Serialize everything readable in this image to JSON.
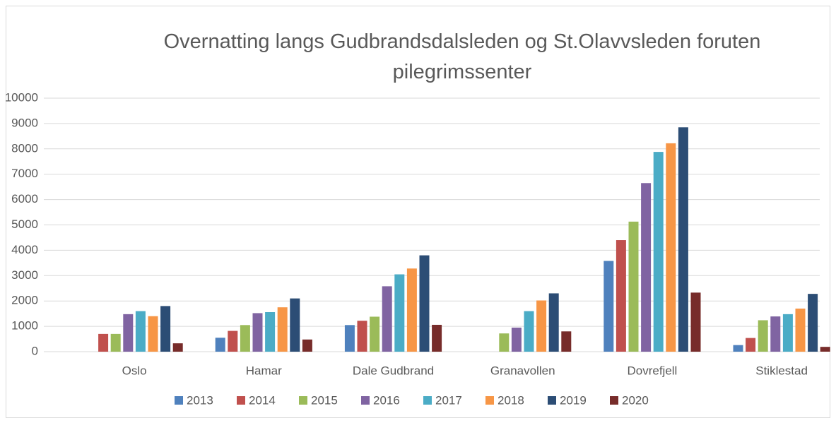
{
  "chart_data": {
    "type": "bar",
    "title": "Overnatting langs Gudbrandsdalsleden og St.Olavvsleden foruten pilegrimssenter",
    "categories": [
      "Oslo",
      "Hamar",
      "Dale Gudbrand",
      "Granavollen",
      "Dovrefjell",
      "Stiklestad"
    ],
    "series": [
      {
        "name": "2013",
        "color": "#4f81bd",
        "values": [
          null,
          550,
          1050,
          null,
          3580,
          260
        ]
      },
      {
        "name": "2014",
        "color": "#c0504d",
        "values": [
          700,
          820,
          1220,
          null,
          4400,
          540
        ]
      },
      {
        "name": "2015",
        "color": "#9bbb59",
        "values": [
          700,
          1050,
          1380,
          720,
          5130,
          1240
        ]
      },
      {
        "name": "2016",
        "color": "#8064a2",
        "values": [
          1480,
          1520,
          2580,
          950,
          6650,
          1390
        ]
      },
      {
        "name": "2017",
        "color": "#4bacc6",
        "values": [
          1600,
          1560,
          3050,
          1600,
          7880,
          1480
        ]
      },
      {
        "name": "2018",
        "color": "#f79646",
        "values": [
          1400,
          1750,
          3280,
          2020,
          8220,
          1700
        ]
      },
      {
        "name": "2019",
        "color": "#2c4d75",
        "values": [
          1800,
          2100,
          3800,
          2300,
          8850,
          2280
        ]
      },
      {
        "name": "2020",
        "color": "#772c2a",
        "values": [
          330,
          480,
          1060,
          800,
          2330,
          190
        ]
      }
    ],
    "ylim": [
      0,
      10000
    ],
    "yticks": [
      0,
      1000,
      2000,
      3000,
      4000,
      5000,
      6000,
      7000,
      8000,
      9000,
      10000
    ],
    "grid": true,
    "legend": "bottom"
  }
}
